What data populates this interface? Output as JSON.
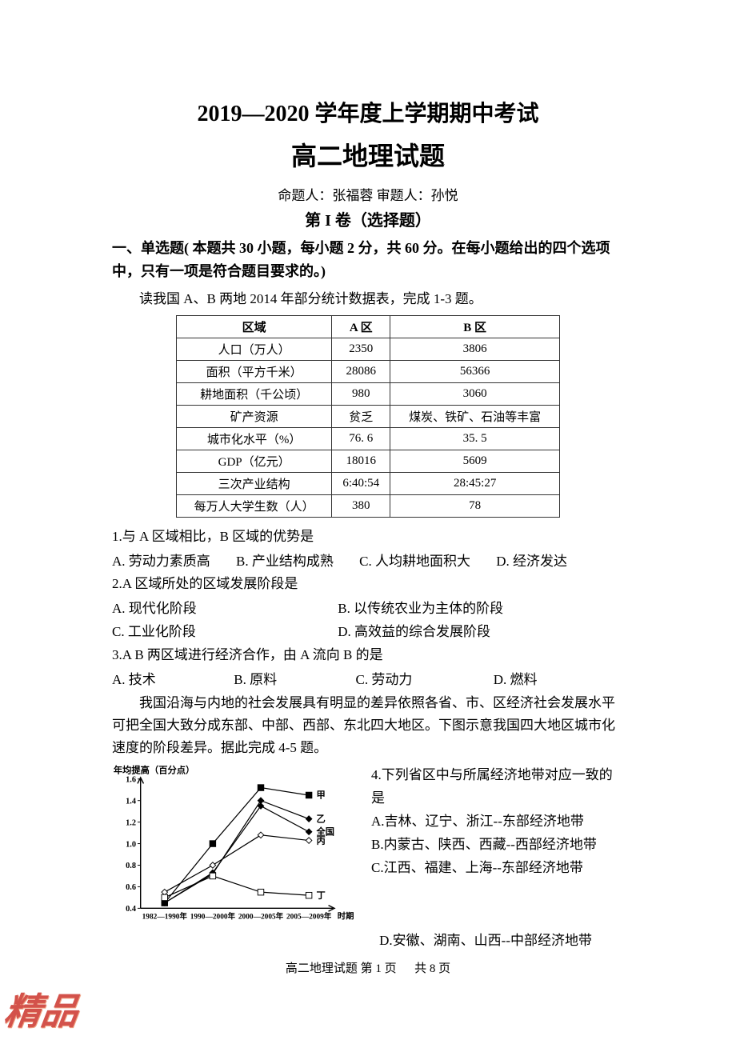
{
  "header": {
    "title_main": "2019—2020 学年度上学期期中考试",
    "title_sub": "高二地理试题",
    "authors": "命题人：张福蓉  审题人：孙悦",
    "section": "第 I 卷（选择题）",
    "instructions": "一、单选题( 本题共 30 小题，每小题 2 分，共 60 分。在每小题给出的四个选项中，只有一项是符合题目要求的。)"
  },
  "passage1": "读我国 A、B 两地 2014 年部分统计数据表，完成 1-3 题。",
  "table1": {
    "columns": [
      "区域",
      "A 区",
      "B 区"
    ],
    "rows": [
      [
        "人口（万人）",
        "2350",
        "3806"
      ],
      [
        "面积（平方千米）",
        "28086",
        "56366"
      ],
      [
        "耕地面积（千公顷）",
        "980",
        "3060"
      ],
      [
        "矿产资源",
        "贫乏",
        "煤炭、铁矿、石油等丰富"
      ],
      [
        "城市化水平（%）",
        "76. 6",
        "35. 5"
      ],
      [
        "GDP（亿元）",
        "18016",
        "5609"
      ],
      [
        "三次产业结构",
        "6:40:54",
        "28:45:27"
      ],
      [
        "每万人大学生数（人）",
        "380",
        "78"
      ]
    ],
    "border_color": "#333333",
    "header_bg": "#ffffff"
  },
  "q1": {
    "stem": "1.与 A 区域相比，B 区域的优势是",
    "A": "A. 劳动力素质高",
    "B": "B. 产业结构成熟",
    "C": "C. 人均耕地面积大",
    "D": "D. 经济发达"
  },
  "q2": {
    "stem": "2.A 区域所处的区域发展阶段是",
    "A": "A. 现代化阶段",
    "B": "B. 以传统农业为主体的阶段",
    "C": "C. 工业化阶段",
    "D": "D. 高效益的综合发展阶段"
  },
  "q3": {
    "stem": "3.A B 两区域进行经济合作，由 A 流向 B 的是",
    "A": "A. 技术",
    "B": "B. 原料",
    "C": "C. 劳动力",
    "D": "D. 燃料"
  },
  "passage2": "我国沿海与内地的社会发展具有明显的差异依照各省、市、区经济社会发展水平可把全国大致分成东部、中部、西部、东北四大地区。下图示意我国四大地区城市化速度的阶段差异。据此完成 4-5 题。",
  "chart": {
    "type": "line",
    "title_y": "年均提高（百分点）",
    "title_y_fontsize": 12,
    "categories": [
      "1982—1990年",
      "1990—2000年",
      "2000—2005年",
      "2005—2009年"
    ],
    "x_label_end": "时期",
    "series": [
      {
        "name": "甲",
        "values": [
          0.45,
          1.0,
          1.52,
          1.45
        ],
        "color": "#000000",
        "marker": "square"
      },
      {
        "name": "乙",
        "values": [
          0.45,
          0.72,
          1.4,
          1.23
        ],
        "color": "#000000",
        "marker": "diamond"
      },
      {
        "name": "全国",
        "values": [
          0.45,
          0.73,
          1.35,
          1.11
        ],
        "color": "#000000",
        "marker": "diamond-filled"
      },
      {
        "name": "丙",
        "values": [
          0.55,
          0.8,
          1.08,
          1.03
        ],
        "color": "#000000",
        "marker": "diamond-open"
      },
      {
        "name": "丁",
        "values": [
          0.5,
          0.7,
          0.55,
          0.52
        ],
        "color": "#000000",
        "marker": "square-open"
      }
    ],
    "ylim": [
      0.4,
      1.6
    ],
    "ytick_step": 0.2,
    "yticks": [
      "0.4",
      "0.6",
      "0.8",
      "1.0",
      "1.2",
      "1.4",
      "1.6"
    ],
    "line_width": 1.3,
    "marker_size": 4,
    "axis_color": "#000000",
    "background": "#ffffff",
    "label_fontsize": 11
  },
  "q4": {
    "stem": "4.下列省区中与所属经济地带对应一致的是",
    "A": "A.吉林、辽宁、浙江--东部经济地带",
    "B": "B.内蒙古、陕西、西藏--西部经济地带",
    "C": "C.江西、福建、上海--东部经济地带",
    "D": "D.安徽、湖南、山西--中部经济地带"
  },
  "footer": {
    "text_left": "高二地理试题 第 ",
    "page_num": "1",
    "text_mid": " 页",
    "text_right": "共 8 页"
  },
  "watermark": "精品"
}
